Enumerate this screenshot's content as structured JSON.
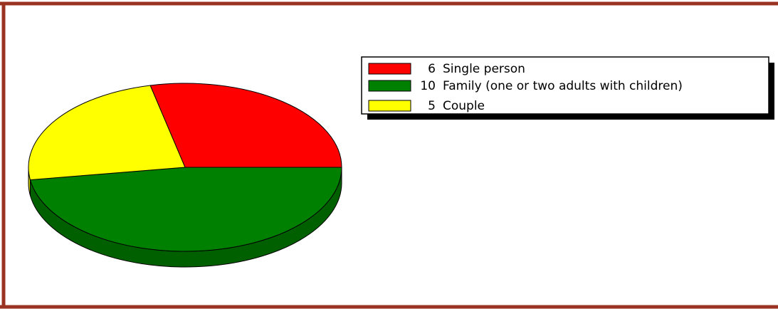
{
  "chart_data": {
    "type": "pie",
    "categories": [
      "Single person",
      "Family (one or two adults with children)",
      "Couple"
    ],
    "values": [
      6,
      10,
      5
    ],
    "colors": [
      "#ff0000",
      "#008000",
      "#ffff00"
    ],
    "side_colors": [
      "#b00000",
      "#006000",
      "#e0e000"
    ],
    "legend": "top-right"
  }
}
